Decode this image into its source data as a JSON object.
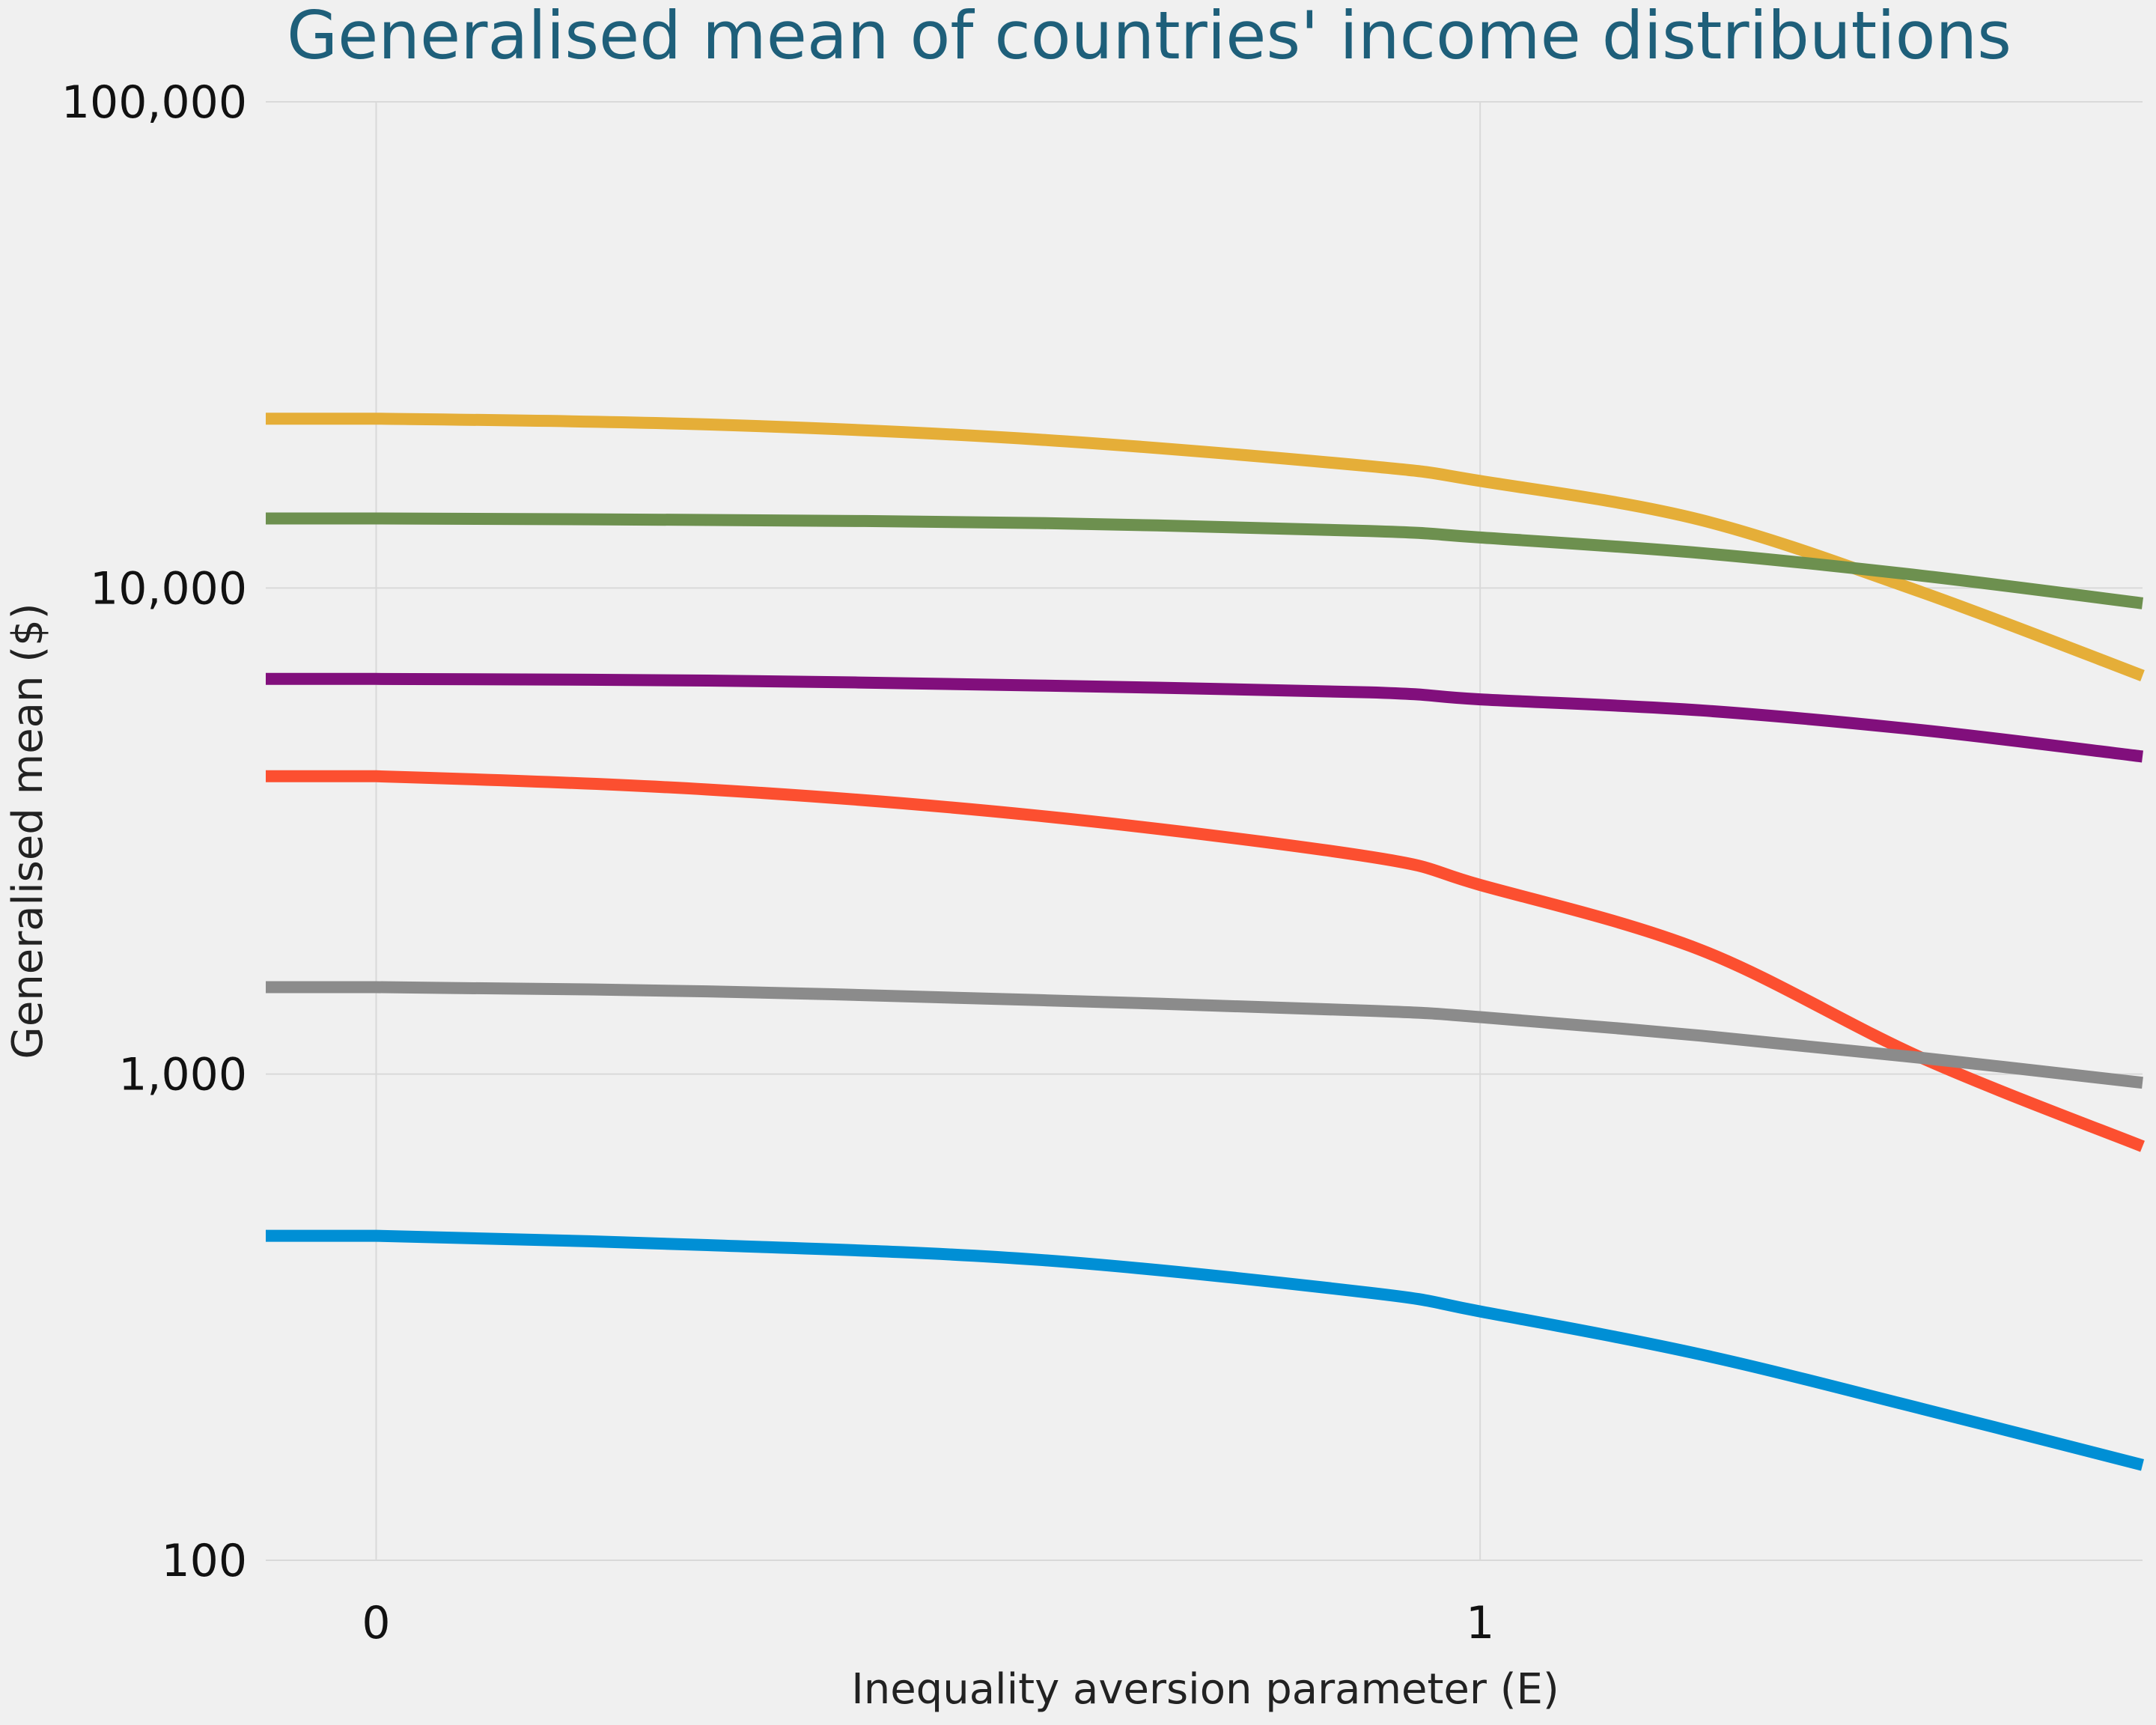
{
  "chart_data": {
    "type": "line",
    "title": "Generalised mean of countries' income distributions",
    "xlabel": "Inequality aversion parameter (E)",
    "ylabel": "Generalised mean ($)",
    "xscale": "linear",
    "yscale": "log",
    "xlim": [
      -0.1,
      1.6
    ],
    "ylim": [
      100,
      100000
    ],
    "grid": true,
    "x": [
      -0.1,
      0.0,
      0.3,
      0.6,
      0.9,
      1.0,
      1.2,
      1.4,
      1.6
    ],
    "x_ticks": [
      {
        "value": 0,
        "label": "0"
      },
      {
        "value": 1,
        "label": "1"
      }
    ],
    "y_ticks": [
      {
        "value": 100,
        "label": "100"
      },
      {
        "value": 1000,
        "label": "1,000"
      },
      {
        "value": 10000,
        "label": "10,000"
      },
      {
        "value": 100000,
        "label": "100,000"
      }
    ],
    "series": [
      {
        "color": "#e5ae38",
        "values": [
          22300,
          22300,
          21700,
          20200,
          17800,
          16600,
          13800,
          9800,
          6600
        ]
      },
      {
        "color": "#6d904f",
        "values": [
          13900,
          13900,
          13800,
          13600,
          13100,
          12700,
          11800,
          10600,
          9300
        ]
      },
      {
        "color": "#810f7c",
        "values": [
          6500,
          6500,
          6450,
          6300,
          6100,
          5900,
          5600,
          5100,
          4500
        ]
      },
      {
        "color": "#fc4f30",
        "values": [
          4100,
          4100,
          3850,
          3400,
          2800,
          2450,
          1800,
          1080,
          710
        ]
      },
      {
        "color": "#8b8b8b",
        "values": [
          1510,
          1510,
          1480,
          1420,
          1350,
          1310,
          1200,
          1080,
          960
        ]
      },
      {
        "color": "#008fd5",
        "values": [
          465,
          465,
          445,
          415,
          355,
          325,
          265,
          205,
          157
        ]
      }
    ]
  }
}
